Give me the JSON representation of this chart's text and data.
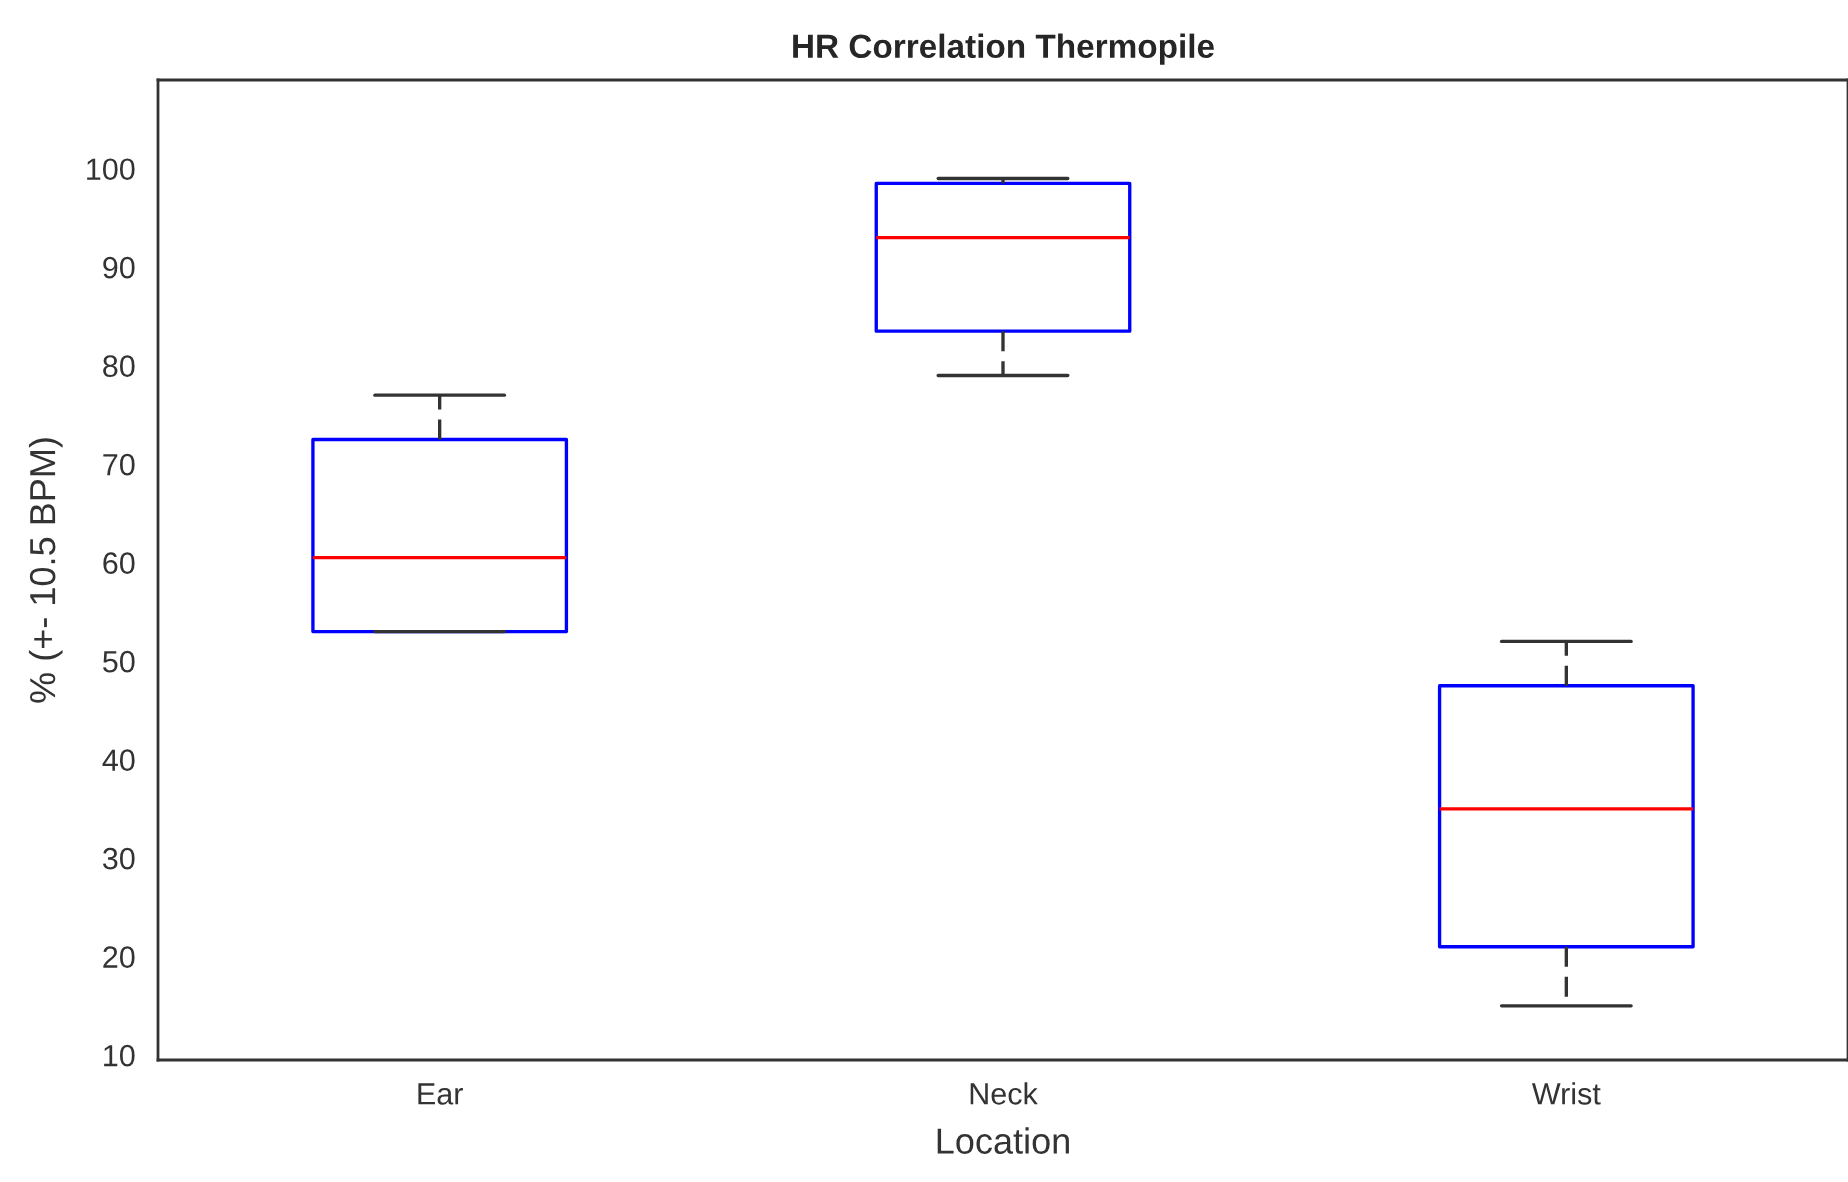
{
  "chart_data": {
    "type": "box",
    "title": "HR Correlation Thermopile",
    "xlabel": "Location",
    "ylabel": "% (+- 10.5 BPM)",
    "categories": [
      "Ear",
      "Neck",
      "Wrist"
    ],
    "boxes": [
      {
        "low": 53,
        "q1": 53,
        "median": 60.5,
        "q3": 72.5,
        "high": 77
      },
      {
        "low": 79,
        "q1": 83.5,
        "median": 93,
        "q3": 98.5,
        "high": 99
      },
      {
        "low": 15,
        "q1": 21,
        "median": 35,
        "q3": 47.5,
        "high": 52
      }
    ],
    "color": "#0000ff",
    "ylim": [
      9.5,
      109
    ],
    "yticks": [
      10,
      20,
      30,
      40,
      50,
      60,
      70,
      80,
      90,
      100
    ],
    "grid": false
  }
}
